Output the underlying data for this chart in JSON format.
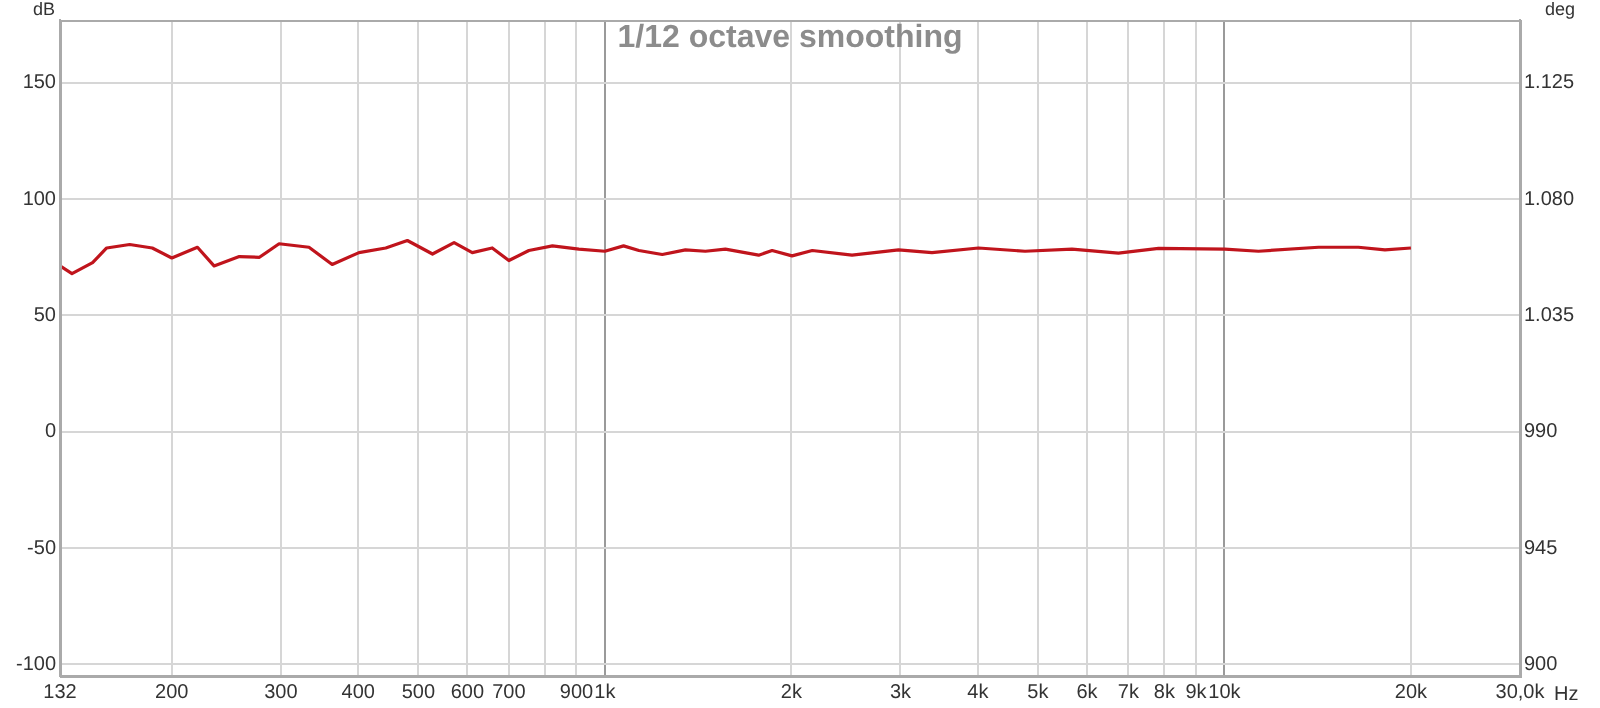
{
  "chart_data": {
    "type": "line",
    "title": "1/12 octave smoothing",
    "xlabel": "Hz",
    "ylabel": "dB",
    "y2label": "deg",
    "log": "x",
    "grid": true,
    "x": [
      132,
      138,
      149,
      157,
      171,
      186,
      200,
      220,
      234,
      257,
      277,
      298,
      333,
      363,
      401,
      443,
      480,
      527,
      571,
      611,
      658,
      700,
      754,
      823,
      908,
      1000,
      1072,
      1135,
      1238,
      1349,
      1453,
      1565,
      1771,
      1862,
      2005,
      2162,
      2506,
      2979,
      3373,
      4009,
      4766,
      5675,
      6745,
      7830,
      10020,
      11350,
      14190,
      16450,
      18160,
      20000
    ],
    "series": [
      {
        "color": "#c0141c",
        "values": [
          71.3,
          68,
          72.7,
          79,
          80.5,
          79,
          74.7,
          79.3,
          71.3,
          75.3,
          75,
          80.8,
          79.3,
          71.9,
          77,
          79,
          82.2,
          76.4,
          81.3,
          77,
          79,
          73.6,
          77.9,
          79.9,
          78.5,
          77.6,
          79.9,
          77.9,
          76.2,
          78.2,
          77.6,
          78.5,
          75.9,
          77.9,
          75.6,
          77.9,
          75.9,
          78.2,
          77,
          79,
          77.6,
          78.5,
          76.8,
          78.8,
          78.5,
          77.6,
          79.3,
          79.3,
          78.2,
          79
        ]
      }
    ],
    "xlim": [
      132,
      30000
    ],
    "xticks": [
      132,
      200,
      300,
      400,
      500,
      600,
      700,
      {
        "value": 800,
        "label": null
      },
      900,
      {
        "value": 1000,
        "label": "1k"
      },
      {
        "value": 2000,
        "label": "2k"
      },
      {
        "value": 3000,
        "label": "3k"
      },
      {
        "value": 4000,
        "label": "4k"
      },
      {
        "value": 5000,
        "label": "5k"
      },
      {
        "value": 6000,
        "label": "6k"
      },
      {
        "value": 7000,
        "label": "7k"
      },
      {
        "value": 8000,
        "label": "8k"
      },
      {
        "value": 9000,
        "label": "9k"
      },
      {
        "value": 10000,
        "label": "10k"
      },
      {
        "value": 20000,
        "label": "20k"
      },
      {
        "value": 30000,
        "label": "30,0k"
      }
    ],
    "ylim": [
      -105,
      177
    ],
    "yticks": [
      -100,
      -50,
      0,
      50,
      100,
      150
    ],
    "y2lim": [
      895.5,
      1149.3
    ],
    "y2ticks": [
      900,
      945,
      990,
      {
        "value": 1035,
        "label": "1.035"
      },
      {
        "value": 1080,
        "label": "1.080"
      },
      {
        "value": 1125,
        "label": "1.125"
      }
    ]
  }
}
